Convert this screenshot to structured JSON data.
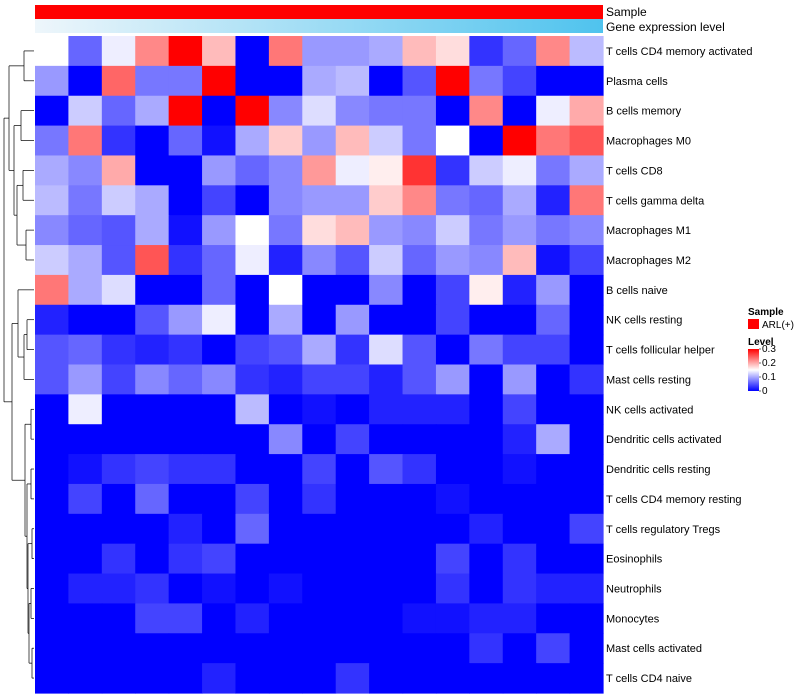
{
  "chart_data": {
    "type": "heatmap",
    "annotations": {
      "sample_label": "Sample",
      "sample_color": "#ff0000",
      "gene_label": "Gene expression level",
      "gene_gradient_start": "#eef6fb",
      "gene_gradient_end": "#4fc3ee"
    },
    "rows": [
      "T cells CD4 memory activated",
      "Plasma cells",
      "B cells memory",
      "Macrophages M0",
      "T cells CD8",
      "T cells gamma delta",
      "Macrophages M1",
      "Macrophages M2",
      "B cells naive",
      "NK cells resting",
      "T cells follicular helper",
      "Mast cells resting",
      "NK cells activated",
      "Dendritic cells activated",
      "Dendritic cells resting",
      "T cells CD4 memory resting",
      "T cells regulatory  Tregs",
      "Eosinophils",
      "Neutrophils",
      "Monocytes",
      "Mast cells activated",
      "T cells CD4 naive"
    ],
    "n_columns": 17,
    "values": [
      [
        0.15,
        0.06,
        0.14,
        0.22,
        0.3,
        0.19,
        0.0,
        0.23,
        0.09,
        0.09,
        0.1,
        0.19,
        0.17,
        0.03,
        0.06,
        0.22,
        0.11
      ],
      [
        0.09,
        0.0,
        0.24,
        0.07,
        0.07,
        0.3,
        0.0,
        0.0,
        0.1,
        0.11,
        0.0,
        0.05,
        0.3,
        0.07,
        0.04,
        0.0,
        0.0
      ],
      [
        0.0,
        0.12,
        0.06,
        0.1,
        0.3,
        0.0,
        0.3,
        0.08,
        0.13,
        0.08,
        0.07,
        0.07,
        0.0,
        0.22,
        0.0,
        0.14,
        0.2
      ],
      [
        0.07,
        0.23,
        0.03,
        0.0,
        0.06,
        0.01,
        0.1,
        0.18,
        0.09,
        0.19,
        0.12,
        0.07,
        0.15,
        0.0,
        0.3,
        0.23,
        0.25
      ],
      [
        0.1,
        0.08,
        0.2,
        0.0,
        0.0,
        0.09,
        0.06,
        0.08,
        0.21,
        0.14,
        0.16,
        0.27,
        0.03,
        0.12,
        0.14,
        0.07,
        0.1
      ],
      [
        0.11,
        0.07,
        0.12,
        0.1,
        0.0,
        0.04,
        0.0,
        0.08,
        0.09,
        0.09,
        0.18,
        0.22,
        0.07,
        0.06,
        0.1,
        0.02,
        0.23
      ],
      [
        0.08,
        0.06,
        0.05,
        0.1,
        0.01,
        0.09,
        0.15,
        0.07,
        0.17,
        0.19,
        0.09,
        0.08,
        0.12,
        0.07,
        0.09,
        0.07,
        0.08
      ],
      [
        0.12,
        0.1,
        0.05,
        0.25,
        0.03,
        0.06,
        0.14,
        0.02,
        0.08,
        0.05,
        0.12,
        0.06,
        0.09,
        0.08,
        0.19,
        0.01,
        0.04
      ],
      [
        0.23,
        0.1,
        0.13,
        0.0,
        0.0,
        0.06,
        0.0,
        0.15,
        0.0,
        0.0,
        0.08,
        0.0,
        0.04,
        0.16,
        0.02,
        0.09,
        0.0
      ],
      [
        0.02,
        0.0,
        0.0,
        0.05,
        0.09,
        0.14,
        0.0,
        0.1,
        0.0,
        0.09,
        0.0,
        0.0,
        0.04,
        0.0,
        0.0,
        0.06,
        0.0
      ],
      [
        0.05,
        0.06,
        0.03,
        0.02,
        0.03,
        0.0,
        0.04,
        0.05,
        0.1,
        0.03,
        0.13,
        0.05,
        0.0,
        0.07,
        0.04,
        0.04,
        0.0
      ],
      [
        0.05,
        0.09,
        0.04,
        0.08,
        0.06,
        0.08,
        0.03,
        0.02,
        0.04,
        0.04,
        0.02,
        0.05,
        0.09,
        0.0,
        0.09,
        0.0,
        0.03
      ],
      [
        0.0,
        0.14,
        0.0,
        0.0,
        0.0,
        0.0,
        0.11,
        0.0,
        0.01,
        0.0,
        0.02,
        0.02,
        0.02,
        0.0,
        0.04,
        0.0,
        0.0
      ],
      [
        0.0,
        0.0,
        0.0,
        0.0,
        0.0,
        0.0,
        0.0,
        0.08,
        0.0,
        0.04,
        0.0,
        0.0,
        0.0,
        0.0,
        0.02,
        0.1,
        0.0
      ],
      [
        0.0,
        0.01,
        0.03,
        0.04,
        0.03,
        0.03,
        0.0,
        0.0,
        0.04,
        0.0,
        0.05,
        0.03,
        0.0,
        0.0,
        0.01,
        0.0,
        0.0
      ],
      [
        0.0,
        0.04,
        0.0,
        0.06,
        0.0,
        0.0,
        0.04,
        0.0,
        0.03,
        0.0,
        0.0,
        0.0,
        0.01,
        0.0,
        0.0,
        0.0,
        0.0
      ],
      [
        0.0,
        0.0,
        0.0,
        0.0,
        0.02,
        0.0,
        0.06,
        0.0,
        0.0,
        0.0,
        0.0,
        0.0,
        0.0,
        0.02,
        0.0,
        0.0,
        0.04
      ],
      [
        0.0,
        0.0,
        0.03,
        0.0,
        0.03,
        0.04,
        0.0,
        0.0,
        0.0,
        0.0,
        0.0,
        0.0,
        0.04,
        0.0,
        0.03,
        0.0,
        0.0
      ],
      [
        0.0,
        0.02,
        0.02,
        0.03,
        0.0,
        0.01,
        0.0,
        0.01,
        0.0,
        0.0,
        0.0,
        0.0,
        0.03,
        0.0,
        0.03,
        0.02,
        0.02
      ],
      [
        0.0,
        0.0,
        0.0,
        0.04,
        0.04,
        0.0,
        0.02,
        0.0,
        0.0,
        0.0,
        0.0,
        0.01,
        0.01,
        0.02,
        0.02,
        0.0,
        0.0
      ],
      [
        0.0,
        0.0,
        0.0,
        0.0,
        0.0,
        0.0,
        0.0,
        0.0,
        0.0,
        0.0,
        0.0,
        0.0,
        0.0,
        0.03,
        0.0,
        0.04,
        0.0
      ],
      [
        0.0,
        0.0,
        0.0,
        0.0,
        0.0,
        0.02,
        0.0,
        0.0,
        0.0,
        0.03,
        0.0,
        0.0,
        0.0,
        0.0,
        0.0,
        0.0,
        0.0
      ]
    ],
    "color_scale": {
      "min": 0,
      "mid": 0.15,
      "max": 0.3,
      "low_color": "#0000ff",
      "mid_color": "#ffffff",
      "high_color": "#ff0000"
    },
    "legend": {
      "placement": "right",
      "sample_title": "Sample",
      "sample_entry": "ARL(+)",
      "level_title": "Level",
      "level_ticks": [
        "0.3",
        "0.2",
        "0.1",
        "0"
      ]
    },
    "dendrogram": "rows"
  }
}
